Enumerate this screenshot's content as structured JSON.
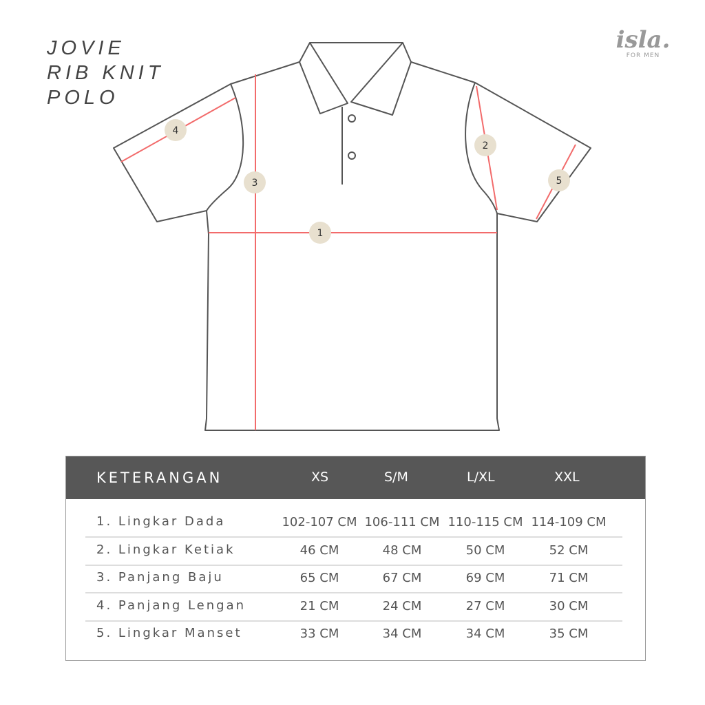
{
  "title_lines": [
    "JOVIE",
    "RIB KNIT",
    "POLO"
  ],
  "logo": {
    "mark": "isla.",
    "sub": "FOR MEN"
  },
  "diagram": {
    "markers": [
      "1",
      "2",
      "3",
      "4",
      "5"
    ],
    "line_color": "#f26b6b",
    "marker_color": "#e8e0cf",
    "outline_color": "#555555"
  },
  "table": {
    "header": [
      "KETERANGAN",
      "XS",
      "S/M",
      "L/XL",
      "XXL"
    ],
    "header_color": "#575757",
    "rows": [
      {
        "label": "1. Lingkar Dada",
        "values": [
          "102-107 CM",
          "106-111 CM",
          "110-115 CM",
          "114-109 CM"
        ]
      },
      {
        "label": "2. Lingkar Ketiak",
        "values": [
          "46 CM",
          "48 CM",
          "50 CM",
          "52 CM"
        ]
      },
      {
        "label": "3. Panjang Baju",
        "values": [
          "65 CM",
          "67 CM",
          "69 CM",
          "71 CM"
        ]
      },
      {
        "label": "4. Panjang Lengan",
        "values": [
          "21 CM",
          "24 CM",
          "27 CM",
          "30 CM"
        ]
      },
      {
        "label": "5. Lingkar Manset",
        "values": [
          "33  CM",
          "34  CM",
          "34 CM",
          "35 CM"
        ]
      }
    ]
  }
}
